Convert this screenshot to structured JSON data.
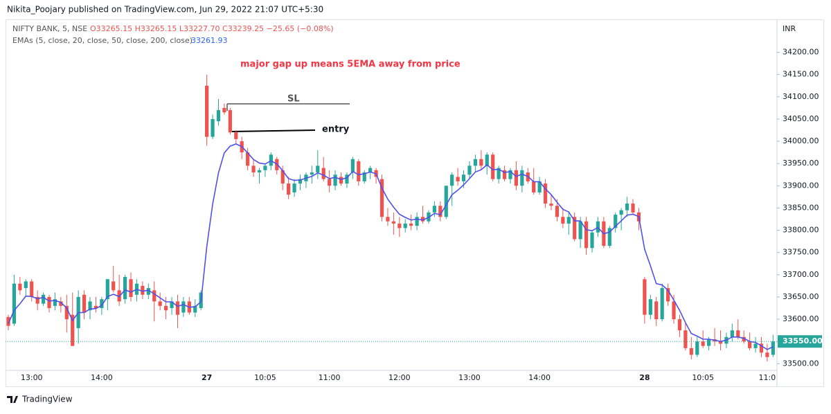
{
  "header": {
    "byline": "Nikita_Poojary published on TradingView.com, Jun 29, 2022 21:07 UTC+5:30",
    "symbol": "NIFTY BANK, 5, NSE",
    "ohlc": "O33265.15 H33265.15 L33227.70 C33239.25 −25.65 (−0.08%)",
    "indicator": "EMAs (5, close, 20, close, 50, close, 200, close)",
    "indicator_value": "33261.93",
    "currency": "INR"
  },
  "footer": {
    "brand": "TradingView"
  },
  "chart_data": {
    "type": "candlestick",
    "annotations": {
      "note": "major gap up means 5EMA away from price",
      "sl": "SL",
      "entry": "entry"
    },
    "up_color": "#26a69a",
    "down_color": "#ef5350",
    "categories": [
      null,
      null,
      null,
      null,
      "13:00",
      null,
      null,
      null,
      null,
      null,
      null,
      null,
      null,
      null,
      null,
      null,
      "14:00",
      null,
      null,
      null,
      null,
      null,
      null,
      null,
      null,
      null,
      null,
      null,
      null,
      null,
      null,
      null,
      null,
      null,
      "27",
      null,
      null,
      null,
      null,
      null,
      null,
      null,
      null,
      null,
      "10:05",
      null,
      null,
      null,
      null,
      null,
      null,
      null,
      null,
      null,
      null,
      "11:00",
      null,
      null,
      null,
      null,
      null,
      null,
      null,
      null,
      null,
      null,
      null,
      "12:00",
      null,
      null,
      null,
      null,
      null,
      null,
      null,
      null,
      null,
      null,
      null,
      "13:00",
      null,
      null,
      null,
      null,
      null,
      null,
      null,
      null,
      null,
      null,
      null,
      "14:00",
      null,
      null,
      null,
      null,
      null,
      null,
      null,
      null,
      null,
      null,
      null,
      null,
      null,
      null,
      null,
      null,
      null,
      "28",
      null,
      null,
      null,
      null,
      null,
      null,
      null,
      null,
      null,
      "10:05",
      null,
      null,
      null,
      null,
      null,
      null,
      null,
      null,
      null,
      null,
      "11:0",
      null
    ],
    "candles": [
      [
        33605,
        33610,
        33575,
        33585
      ],
      [
        33590,
        33700,
        33585,
        33680
      ],
      [
        33680,
        33695,
        33655,
        33665
      ],
      [
        33670,
        33690,
        33650,
        33685
      ],
      [
        33685,
        33690,
        33640,
        33650
      ],
      [
        33650,
        33665,
        33620,
        33635
      ],
      [
        33635,
        33660,
        33630,
        33655
      ],
      [
        33650,
        33655,
        33615,
        33625
      ],
      [
        33630,
        33660,
        33620,
        33645
      ],
      [
        33640,
        33650,
        33615,
        33630
      ],
      [
        33630,
        33655,
        33570,
        33600
      ],
      [
        33610,
        33660,
        33540,
        33540
      ],
      [
        33580,
        33665,
        33545,
        33650
      ],
      [
        33655,
        33665,
        33600,
        33615
      ],
      [
        33620,
        33650,
        33600,
        33640
      ],
      [
        33630,
        33650,
        33615,
        33625
      ],
      [
        33625,
        33650,
        33610,
        33645
      ],
      [
        33645,
        33690,
        33620,
        33690
      ],
      [
        33685,
        33720,
        33660,
        33665
      ],
      [
        33665,
        33700,
        33630,
        33640
      ],
      [
        33645,
        33700,
        33635,
        33695
      ],
      [
        33690,
        33705,
        33640,
        33650
      ],
      [
        33655,
        33690,
        33640,
        33680
      ],
      [
        33675,
        33685,
        33645,
        33655
      ],
      [
        33655,
        33680,
        33645,
        33670
      ],
      [
        33665,
        33685,
        33595,
        33640
      ],
      [
        33640,
        33660,
        33620,
        33630
      ],
      [
        33630,
        33650,
        33600,
        33620
      ],
      [
        33625,
        33650,
        33610,
        33640
      ],
      [
        33640,
        33655,
        33580,
        33610
      ],
      [
        33615,
        33650,
        33605,
        33640
      ],
      [
        33640,
        33650,
        33610,
        33615
      ],
      [
        33615,
        33645,
        33605,
        33630
      ],
      [
        33625,
        33665,
        33620,
        33660
      ],
      [
        34125,
        34150,
        33990,
        34010
      ],
      [
        34010,
        34060,
        34005,
        34050
      ],
      [
        34045,
        34095,
        34035,
        34070
      ],
      [
        34075,
        34085,
        34060,
        34065
      ],
      [
        34070,
        34075,
        34015,
        34020
      ],
      [
        34020,
        34025,
        33995,
        34005
      ],
      [
        34000,
        34010,
        33960,
        33975
      ],
      [
        33975,
        33985,
        33935,
        33945
      ],
      [
        33945,
        33960,
        33920,
        33930
      ],
      [
        33930,
        33940,
        33905,
        33935
      ],
      [
        33935,
        33950,
        33920,
        33945
      ],
      [
        33945,
        33975,
        33935,
        33970
      ],
      [
        33960,
        33965,
        33925,
        33935
      ],
      [
        33935,
        33945,
        33890,
        33905
      ],
      [
        33905,
        33920,
        33870,
        33880
      ],
      [
        33885,
        33915,
        33875,
        33905
      ],
      [
        33905,
        33925,
        33890,
        33915
      ],
      [
        33910,
        33930,
        33895,
        33925
      ],
      [
        33925,
        33945,
        33905,
        33930
      ],
      [
        33930,
        33980,
        33915,
        33945
      ],
      [
        33940,
        33965,
        33910,
        33915
      ],
      [
        33915,
        33935,
        33885,
        33900
      ],
      [
        33900,
        33935,
        33890,
        33925
      ],
      [
        33920,
        33930,
        33900,
        33905
      ],
      [
        33905,
        33930,
        33895,
        33925
      ],
      [
        33930,
        33965,
        33915,
        33960
      ],
      [
        33955,
        33960,
        33900,
        33910
      ],
      [
        33910,
        33935,
        33905,
        33930
      ],
      [
        33930,
        33945,
        33915,
        33940
      ],
      [
        33935,
        33940,
        33905,
        33920
      ],
      [
        33915,
        33925,
        33820,
        33830
      ],
      [
        33830,
        33850,
        33810,
        33820
      ],
      [
        33820,
        33840,
        33790,
        33815
      ],
      [
        33815,
        33830,
        33785,
        33805
      ],
      [
        33805,
        33825,
        33795,
        33815
      ],
      [
        33815,
        33835,
        33800,
        33810
      ],
      [
        33810,
        33840,
        33800,
        33830
      ],
      [
        33830,
        33855,
        33815,
        33820
      ],
      [
        33820,
        33845,
        33815,
        33840
      ],
      [
        33840,
        33865,
        33830,
        33855
      ],
      [
        33855,
        33865,
        33820,
        33830
      ],
      [
        33830,
        33900,
        33825,
        33900
      ],
      [
        33900,
        33930,
        33855,
        33925
      ],
      [
        33920,
        33940,
        33900,
        33910
      ],
      [
        33910,
        33935,
        33895,
        33925
      ],
      [
        33925,
        33955,
        33915,
        33945
      ],
      [
        33945,
        33970,
        33930,
        33960
      ],
      [
        33960,
        33980,
        33935,
        33945
      ],
      [
        33945,
        33975,
        33925,
        33970
      ],
      [
        33970,
        33975,
        33910,
        33915
      ],
      [
        33915,
        33945,
        33905,
        33940
      ],
      [
        33935,
        33945,
        33910,
        33915
      ],
      [
        33915,
        33940,
        33905,
        33935
      ],
      [
        33935,
        33955,
        33890,
        33900
      ],
      [
        33900,
        33945,
        33885,
        33935
      ],
      [
        33930,
        33940,
        33905,
        33910
      ],
      [
        33910,
        33940,
        33880,
        33885
      ],
      [
        33885,
        33920,
        33880,
        33910
      ],
      [
        33905,
        33915,
        33850,
        33860
      ],
      [
        33860,
        33880,
        33845,
        33855
      ],
      [
        33855,
        33870,
        33820,
        33830
      ],
      [
        33830,
        33850,
        33805,
        33815
      ],
      [
        33815,
        33840,
        33790,
        33830
      ],
      [
        33830,
        33840,
        33775,
        33780
      ],
      [
        33780,
        33830,
        33760,
        33820
      ],
      [
        33820,
        33830,
        33745,
        33760
      ],
      [
        33760,
        33800,
        33750,
        33795
      ],
      [
        33795,
        33830,
        33785,
        33820
      ],
      [
        33820,
        33830,
        33760,
        33765
      ],
      [
        33765,
        33810,
        33760,
        33805
      ],
      [
        33805,
        33840,
        33795,
        33835
      ],
      [
        33835,
        33850,
        33800,
        33845
      ],
      [
        33845,
        33875,
        33830,
        33860
      ],
      [
        33860,
        33870,
        33835,
        33840
      ],
      [
        33840,
        33850,
        33800,
        33820
      ],
      [
        33690,
        33695,
        33590,
        33610
      ],
      [
        33610,
        33655,
        33600,
        33645
      ],
      [
        33640,
        33650,
        33585,
        33600
      ],
      [
        33600,
        33680,
        33595,
        33670
      ],
      [
        33670,
        33680,
        33630,
        33640
      ],
      [
        33640,
        33655,
        33590,
        33600
      ],
      [
        33600,
        33610,
        33560,
        33575
      ],
      [
        33575,
        33590,
        33530,
        33535
      ],
      [
        33535,
        33560,
        33510,
        33520
      ],
      [
        33520,
        33560,
        33515,
        33550
      ],
      [
        33550,
        33575,
        33535,
        33540
      ],
      [
        33540,
        33560,
        33530,
        33555
      ],
      [
        33555,
        33580,
        33540,
        33550
      ],
      [
        33550,
        33575,
        33530,
        33545
      ],
      [
        33545,
        33570,
        33535,
        33560
      ],
      [
        33560,
        33590,
        33550,
        33575
      ],
      [
        33575,
        33600,
        33555,
        33560
      ],
      [
        33560,
        33575,
        33545,
        33550
      ],
      [
        33550,
        33570,
        33530,
        33535
      ],
      [
        33535,
        33560,
        33525,
        33545
      ],
      [
        33545,
        33560,
        33515,
        33525
      ],
      [
        33525,
        33545,
        33505,
        33515
      ],
      [
        33520,
        33565,
        33515,
        33550
      ]
    ],
    "ema": {
      "color": "#5050e6",
      "values": [
        33590,
        33620,
        33635,
        33652,
        33651,
        33646,
        33649,
        33641,
        33642,
        33638,
        33625,
        33597,
        33615,
        33615,
        33623,
        33624,
        33631,
        33651,
        33656,
        33651,
        33666,
        33661,
        33667,
        33663,
        33665,
        33657,
        33648,
        33639,
        33639,
        33629,
        33633,
        33627,
        33628,
        33639,
        33763,
        33859,
        33929,
        33974,
        33989,
        33994,
        33988,
        33974,
        33959,
        33951,
        33949,
        33956,
        33949,
        33934,
        33916,
        33912,
        33913,
        33917,
        33921,
        33929,
        33924,
        33916,
        33919,
        33914,
        33918,
        33932,
        33925,
        33927,
        33931,
        33927,
        33895,
        33870,
        33852,
        33836,
        33829,
        33823,
        33825,
        33823,
        33829,
        33838,
        33835,
        33857,
        33880,
        33890,
        33902,
        33916,
        33931,
        33936,
        33947,
        33936,
        33937,
        33930,
        33932,
        33921,
        33926,
        33921,
        33909,
        33909,
        33893,
        33880,
        33863,
        33847,
        33841,
        33821,
        33821,
        33801,
        33799,
        33806,
        33792,
        33796,
        33809,
        33821,
        33834,
        33836,
        33831,
        33757,
        33720,
        33680,
        33677,
        33665,
        33643,
        33620,
        33592,
        33568,
        33562,
        33555,
        33555,
        33553,
        33550,
        33553,
        33560,
        33560,
        33557,
        33550,
        33548,
        33540,
        33532,
        33538
      ]
    },
    "last_price_label": "33550.00",
    "ylim": [
      33485,
      34274
    ],
    "yticks": [
      {
        "value": 33500,
        "label": "33500.00"
      },
      {
        "value": 33550,
        "label": "33550.00"
      },
      {
        "value": 33600,
        "label": "33600.00"
      },
      {
        "value": 33650,
        "label": "33650.00"
      },
      {
        "value": 33700,
        "label": "33700.00"
      },
      {
        "value": 33750,
        "label": "33750.00"
      },
      {
        "value": 33800,
        "label": "33800.00"
      },
      {
        "value": 33850,
        "label": "33850.00"
      },
      {
        "value": 33900,
        "label": "33900.00"
      },
      {
        "value": 33950,
        "label": "33950.00"
      },
      {
        "value": 34000,
        "label": "34000.00"
      },
      {
        "value": 34050,
        "label": "34050.00"
      },
      {
        "value": 34100,
        "label": "34100.00"
      },
      {
        "value": 34150,
        "label": "34150.00"
      },
      {
        "value": 34200,
        "label": "34200.00"
      }
    ],
    "grid": false
  }
}
